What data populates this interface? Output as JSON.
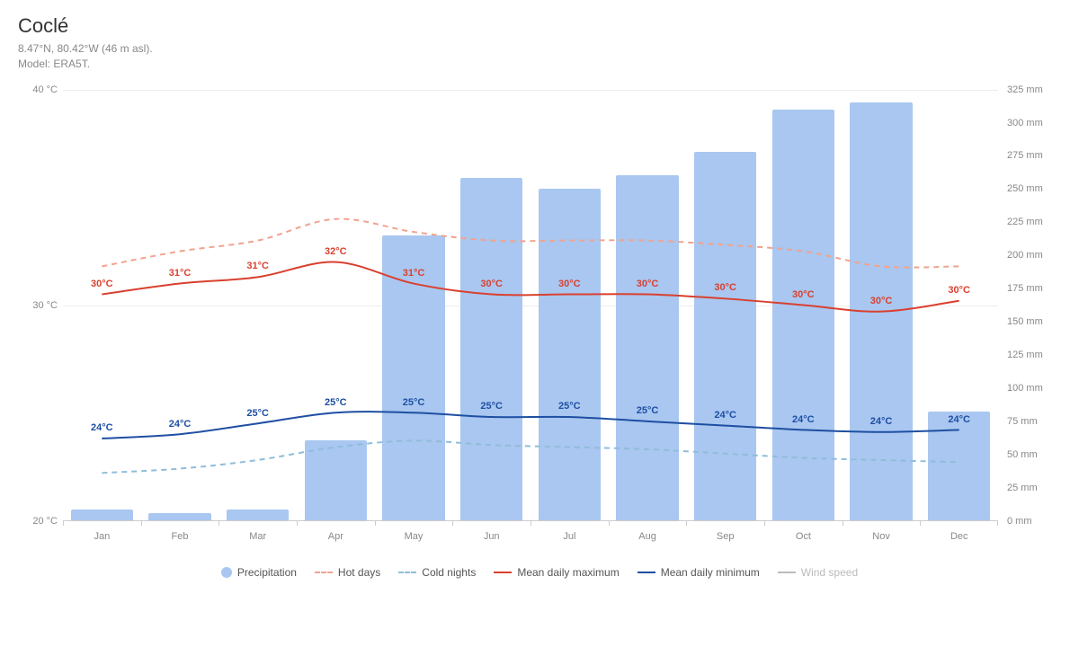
{
  "header": {
    "title": "Coclé",
    "coords": "8.47°N, 80.42°W (46 m asl).",
    "model": "Model: ERA5T."
  },
  "chart": {
    "months": [
      "Jan",
      "Feb",
      "Mar",
      "Apr",
      "May",
      "Jun",
      "Jul",
      "Aug",
      "Sep",
      "Oct",
      "Nov",
      "Dec"
    ],
    "leftAxis": {
      "min": 20,
      "max": 40,
      "ticks": [
        20,
        30,
        40
      ],
      "unit": "°C",
      "labels": [
        "20 °C",
        "30 °C",
        "40 °C"
      ]
    },
    "rightAxis": {
      "min": 0,
      "max": 325,
      "ticks": [
        0,
        25,
        50,
        75,
        100,
        125,
        150,
        175,
        200,
        225,
        250,
        275,
        300,
        325
      ],
      "unit": "mm",
      "labels": [
        "0 mm",
        "25 mm",
        "50 mm",
        "75 mm",
        "100 mm",
        "125 mm",
        "150 mm",
        "175 mm",
        "200 mm",
        "225 mm",
        "250 mm",
        "275 mm",
        "300 mm",
        "325 mm"
      ]
    },
    "grid_color": "#eeeeee",
    "axis_color": "#cccccc",
    "label_color": "#888888",
    "bar_color": "#a9c7f0",
    "background_color": "#ffffff",
    "label_fontsize": 11,
    "precipitation_mm": [
      8,
      5,
      8,
      60,
      215,
      258,
      250,
      260,
      278,
      310,
      315,
      82
    ],
    "mean_max_c": [
      30.5,
      31,
      31.3,
      32,
      31,
      30.5,
      30.5,
      30.5,
      30.3,
      30,
      29.7,
      30.2
    ],
    "mean_max_labels": [
      "30°C",
      "31°C",
      "31°C",
      "32°C",
      "31°C",
      "30°C",
      "30°C",
      "30°C",
      "30°C",
      "30°C",
      "30°C",
      "30°C"
    ],
    "mean_min_c": [
      23.8,
      24,
      24.5,
      25,
      25,
      24.8,
      24.8,
      24.6,
      24.4,
      24.2,
      24.1,
      24.2
    ],
    "mean_min_labels": [
      "24°C",
      "24°C",
      "25°C",
      "25°C",
      "25°C",
      "25°C",
      "25°C",
      "25°C",
      "24°C",
      "24°C",
      "24°C",
      "24°C"
    ],
    "hot_days_c": [
      31.8,
      32.5,
      33,
      34,
      33.4,
      33,
      33,
      33,
      32.8,
      32.5,
      31.8,
      31.8
    ],
    "cold_nights_c": [
      22.2,
      22.4,
      22.8,
      23.4,
      23.7,
      23.5,
      23.4,
      23.3,
      23.1,
      22.9,
      22.8,
      22.7
    ],
    "colors": {
      "mean_max": "#d9402f",
      "mean_min": "#1e4fa3",
      "hot_days": "#f1a38f",
      "cold_nights": "#8fbdd9",
      "wind": "#bbbbbb"
    },
    "line_width": 2,
    "dash_pattern": "6 5"
  },
  "legend": {
    "precipitation": "Precipitation",
    "hot_days": "Hot days",
    "cold_nights": "Cold nights",
    "mean_max": "Mean daily maximum",
    "mean_min": "Mean daily minimum",
    "wind": "Wind speed"
  }
}
